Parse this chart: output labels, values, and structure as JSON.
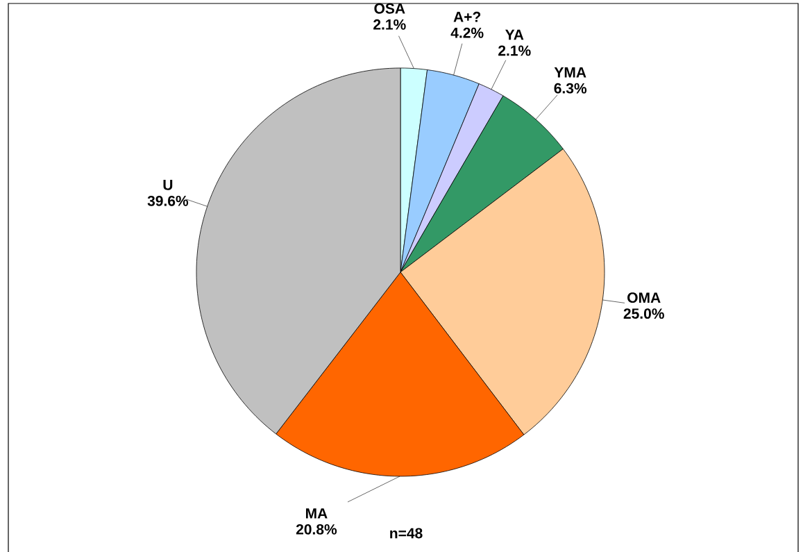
{
  "chart_data": {
    "type": "pie",
    "categories": [
      "OSA",
      "A+?",
      "YA",
      "YMA",
      "OMA",
      "MA",
      "U"
    ],
    "values": [
      2.1,
      4.2,
      2.1,
      6.3,
      25.0,
      20.8,
      39.6
    ],
    "colors": [
      "#ccffff",
      "#99ccff",
      "#ccccff",
      "#339966",
      "#ffcc99",
      "#ff6600",
      "#c0c0c0"
    ],
    "value_labels": [
      "2.1%",
      "4.2%",
      "2.1%",
      "6.3%",
      "25.0%",
      "20.8%",
      "39.6%"
    ],
    "annotations": [
      "n=48"
    ]
  }
}
